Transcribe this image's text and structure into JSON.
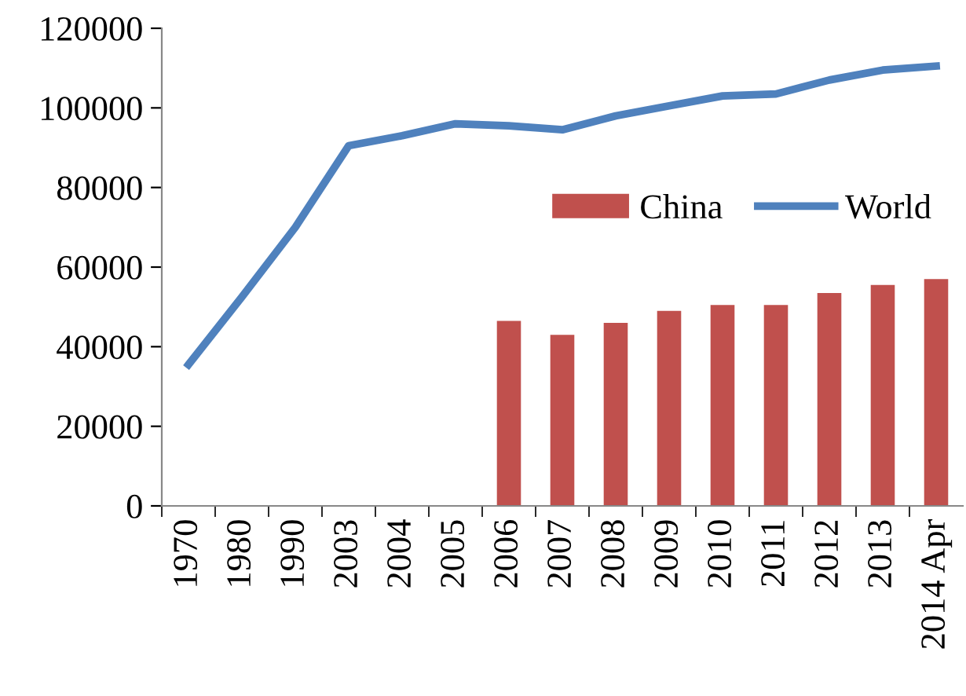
{
  "chart_data": {
    "type": "bar",
    "categories": [
      "1970",
      "1980",
      "1990",
      "2003",
      "2004",
      "2005",
      "2006",
      "2007",
      "2008",
      "2009",
      "2010",
      "2011",
      "2012",
      "2013",
      "2014 Apr"
    ],
    "series": [
      {
        "name": "China",
        "color": "#c0504d",
        "values": [
          null,
          null,
          null,
          null,
          null,
          null,
          46500,
          43000,
          46000,
          49000,
          50500,
          50500,
          53500,
          55500,
          57000
        ]
      },
      {
        "name": "World",
        "type": "line",
        "color": "#4f81bd",
        "values": [
          35500,
          52500,
          70000,
          90500,
          93000,
          96000,
          95500,
          94500,
          98000,
          100500,
          103000,
          103500,
          107000,
          109500,
          110500
        ]
      }
    ],
    "ylim": [
      0,
      120000
    ],
    "yticks": [
      0,
      20000,
      40000,
      60000,
      80000,
      100000,
      120000
    ],
    "grid": false,
    "legend": "right",
    "marker": "none",
    "line_style": "solid"
  }
}
